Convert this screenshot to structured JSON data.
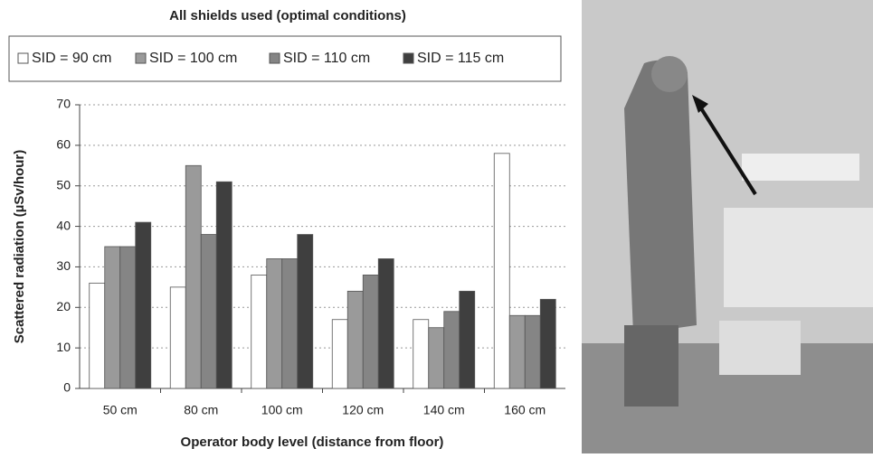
{
  "chart_data": {
    "type": "bar",
    "title": "All shields used (optimal conditions)",
    "x_label": "Operator body level (distance from floor)",
    "y_label": "Scattered radiation (µSv/hour)",
    "categories": [
      "50 cm",
      "80 cm",
      "100 cm",
      "120 cm",
      "140 cm",
      "160 cm"
    ],
    "series": [
      {
        "name": "SID = 90 cm",
        "color": "#ffffff",
        "values": [
          26,
          25,
          28,
          17,
          17,
          58
        ]
      },
      {
        "name": "SID = 100 cm",
        "color": "#9a9a9a",
        "values": [
          35,
          55,
          32,
          24,
          15,
          18
        ]
      },
      {
        "name": "SID = 110 cm",
        "color": "#858585",
        "values": [
          35,
          38,
          32,
          28,
          19,
          18
        ]
      },
      {
        "name": "SID = 115 cm",
        "color": "#3f3f3f",
        "values": [
          41,
          51,
          38,
          32,
          24,
          22
        ]
      }
    ],
    "ylim": [
      0,
      70
    ],
    "yticks": [
      0,
      10,
      20,
      30,
      40,
      50,
      60,
      70
    ],
    "grid": true
  }
}
